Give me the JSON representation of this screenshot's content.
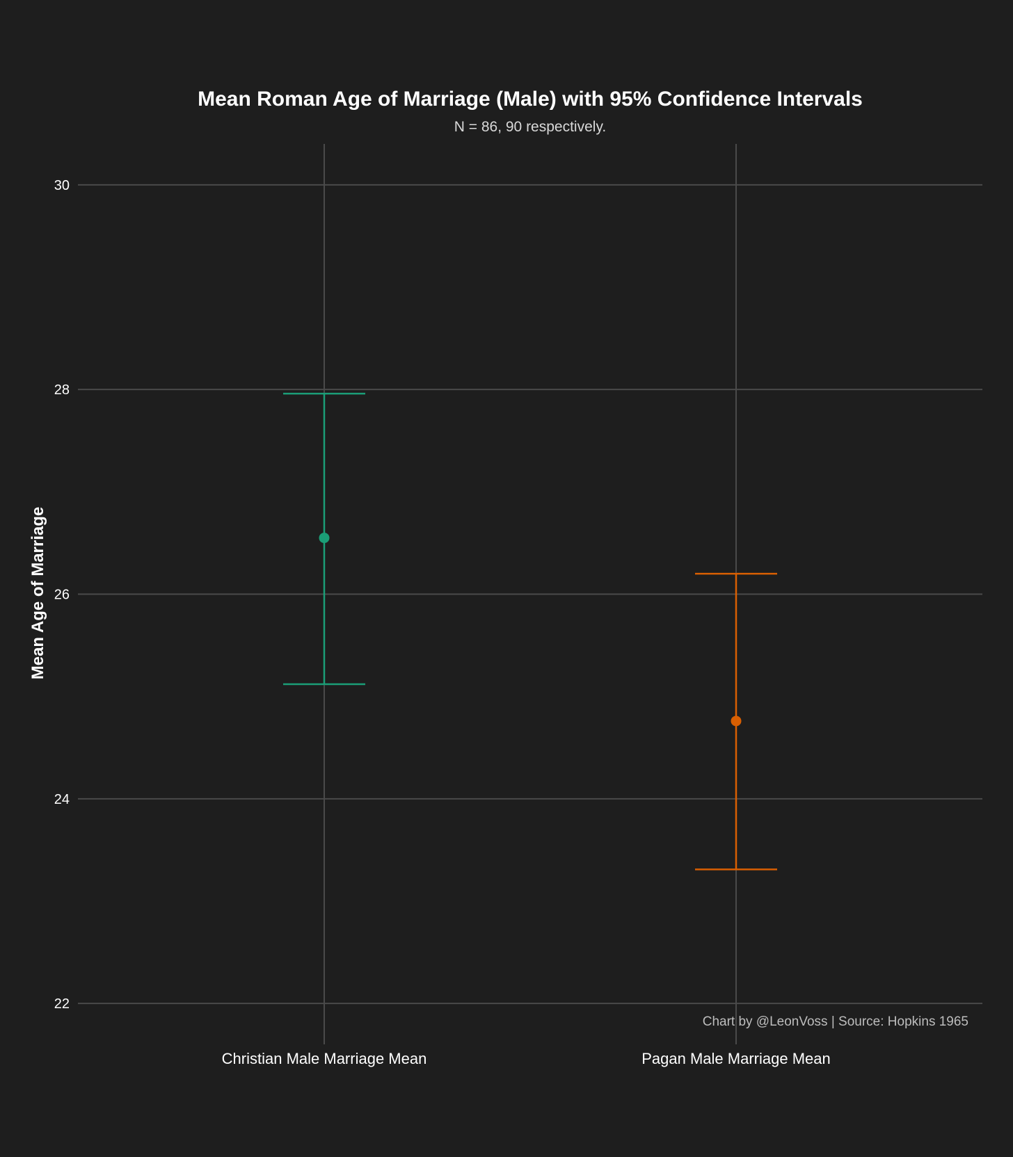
{
  "chart_data": {
    "type": "errorbar",
    "title": "Mean Roman Age of Marriage (Male) with 95% Confidence Intervals",
    "subtitle": "N = 86, 90 respectively.",
    "ylabel": "Mean Age of Marriage",
    "xlabel": "",
    "ylim": [
      21.6,
      30.4
    ],
    "yticks": [
      "22",
      "24",
      "26",
      "28",
      "30"
    ],
    "grid": true,
    "legend": "none",
    "caption": "Chart by @LeonVoss | Source: Hopkins 1965",
    "categories": [
      "Christian Male Marriage Mean",
      "Pagan Male Marriage Mean"
    ],
    "series": [
      {
        "category": "Christian Male Marriage Mean",
        "mean": 26.55,
        "lower": 25.12,
        "upper": 27.96,
        "color": "#1b9e77"
      },
      {
        "category": "Pagan Male Marriage Mean",
        "mean": 24.76,
        "lower": 23.31,
        "upper": 26.2,
        "color": "#d95f02"
      }
    ]
  }
}
